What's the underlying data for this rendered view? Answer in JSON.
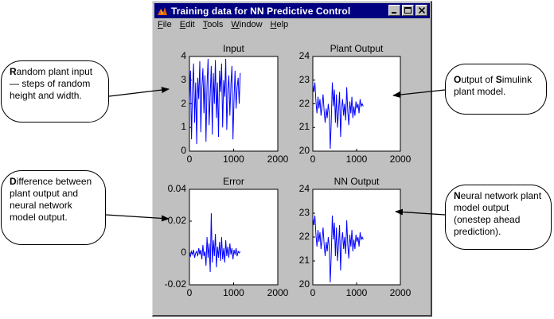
{
  "window": {
    "title": "Training data for NN Predictive Control",
    "menu": [
      {
        "label": "File",
        "accel": "F",
        "rest": "ile"
      },
      {
        "label": "Edit",
        "accel": "E",
        "rest": "dit"
      },
      {
        "label": "Tools",
        "accel": "T",
        "rest": "ools"
      },
      {
        "label": "Window",
        "accel": "W",
        "rest": "indow"
      },
      {
        "label": "Help",
        "accel": "H",
        "rest": "elp"
      }
    ]
  },
  "icons": [
    "matlab-app-icon",
    "minimize-icon",
    "maximize-icon",
    "close-icon"
  ],
  "callouts": {
    "input": {
      "first": "R",
      "rest": "andom plant input — steps of random height and width."
    },
    "plant": {
      "first": "O",
      "rest": "utput of ",
      "first2": "S",
      "rest2": "imulink plant model."
    },
    "error": {
      "first": "D",
      "rest": "ifference between plant output and neural network model output."
    },
    "nn": {
      "first": "N",
      "rest": "eural network plant model output (onestep ahead prediction)."
    }
  },
  "chart_data": [
    {
      "type": "line",
      "title": "Input",
      "xlim": [
        0,
        2000
      ],
      "ylim": [
        0,
        4
      ],
      "xticks": [
        "0",
        "1000",
        "2000"
      ],
      "yticks": [
        "0",
        "1",
        "2",
        "3",
        "4"
      ],
      "color": "#0000ff",
      "x_extent": [
        0,
        1150
      ],
      "values": [
        2.1,
        3.4,
        0.5,
        2.6,
        3.7,
        1.2,
        2.9,
        0.3,
        3.1,
        2.2,
        3.8,
        0.8,
        2.7,
        3.5,
        1.6,
        3.2,
        0.4,
        2.8,
        3.9,
        1.1,
        2.4,
        3.6,
        0.7,
        3.3,
        2.0,
        3.85,
        1.4,
        2.9,
        0.6,
        3.4,
        2.5,
        3.7,
        1.0,
        3.0,
        2.3,
        3.9,
        0.9,
        2.6,
        3.2,
        1.5,
        2.8,
        3.6,
        0.5,
        2.2,
        3.4,
        1.8,
        2.7,
        3.1,
        2.0,
        3.3
      ]
    },
    {
      "type": "line",
      "title": "Plant Output",
      "xlim": [
        0,
        2000
      ],
      "ylim": [
        20,
        24
      ],
      "xticks": [
        "0",
        "1000",
        "2000"
      ],
      "yticks": [
        "20",
        "21",
        "22",
        "23",
        "24"
      ],
      "color": "#0000ff",
      "x_extent": [
        0,
        1150
      ],
      "values": [
        22.8,
        22.5,
        22.9,
        22.1,
        21.6,
        22.3,
        21.8,
        22.2,
        21.5,
        21.9,
        22.4,
        21.7,
        21.2,
        21.8,
        21.4,
        22.0,
        21.6,
        20.1,
        21.3,
        22.9,
        21.9,
        22.6,
        21.2,
        22.4,
        21.0,
        21.7,
        22.5,
        20.6,
        21.8,
        22.2,
        21.5,
        22.0,
        21.3,
        22.7,
        21.7,
        21.1,
        22.1,
        21.6,
        22.3,
        21.4,
        21.9,
        21.5,
        22.1,
        21.8,
        22.0,
        21.6,
        22.2,
        21.9,
        22.0,
        21.9
      ]
    },
    {
      "type": "line",
      "title": "Error",
      "xlim": [
        0,
        2000
      ],
      "ylim": [
        -0.02,
        0.04
      ],
      "xticks": [
        "0",
        "1000",
        "2000"
      ],
      "yticks": [
        "-0.02",
        "0",
        "0.02",
        "0.04"
      ],
      "color": "#0000ff",
      "x_extent": [
        0,
        1150
      ],
      "values": [
        0.0,
        -0.002,
        0.001,
        -0.001,
        0.002,
        -0.003,
        0.0,
        0.001,
        -0.002,
        0.003,
        -0.001,
        0.002,
        -0.004,
        0.005,
        -0.002,
        0.001,
        -0.008,
        0.01,
        -0.003,
        0.006,
        -0.012,
        0.025,
        -0.006,
        0.008,
        -0.002,
        0.012,
        -0.009,
        0.004,
        -0.003,
        0.007,
        -0.005,
        0.01,
        -0.004,
        0.003,
        -0.006,
        0.008,
        -0.002,
        0.004,
        -0.003,
        0.006,
        -0.001,
        0.003,
        -0.004,
        0.002,
        -0.001,
        0.003,
        -0.002,
        0.001,
        0.0,
        0.001
      ]
    },
    {
      "type": "line",
      "title": "NN Output",
      "xlim": [
        0,
        2000
      ],
      "ylim": [
        20,
        24
      ],
      "xticks": [
        "0",
        "1000",
        "2000"
      ],
      "yticks": [
        "20",
        "21",
        "22",
        "23",
        "24"
      ],
      "color": "#0000ff",
      "x_extent": [
        0,
        1150
      ],
      "values": [
        22.8,
        22.5,
        22.9,
        22.1,
        21.6,
        22.3,
        21.8,
        22.2,
        21.5,
        21.9,
        22.4,
        21.7,
        21.2,
        21.8,
        21.4,
        22.0,
        21.6,
        20.1,
        21.3,
        22.9,
        21.9,
        22.6,
        21.2,
        22.4,
        21.0,
        21.7,
        22.5,
        20.6,
        21.8,
        22.2,
        21.5,
        22.0,
        21.3,
        22.7,
        21.7,
        21.1,
        22.1,
        21.6,
        22.3,
        21.4,
        21.9,
        21.5,
        22.1,
        21.8,
        22.0,
        21.6,
        22.2,
        21.9,
        22.0,
        21.9
      ]
    }
  ]
}
